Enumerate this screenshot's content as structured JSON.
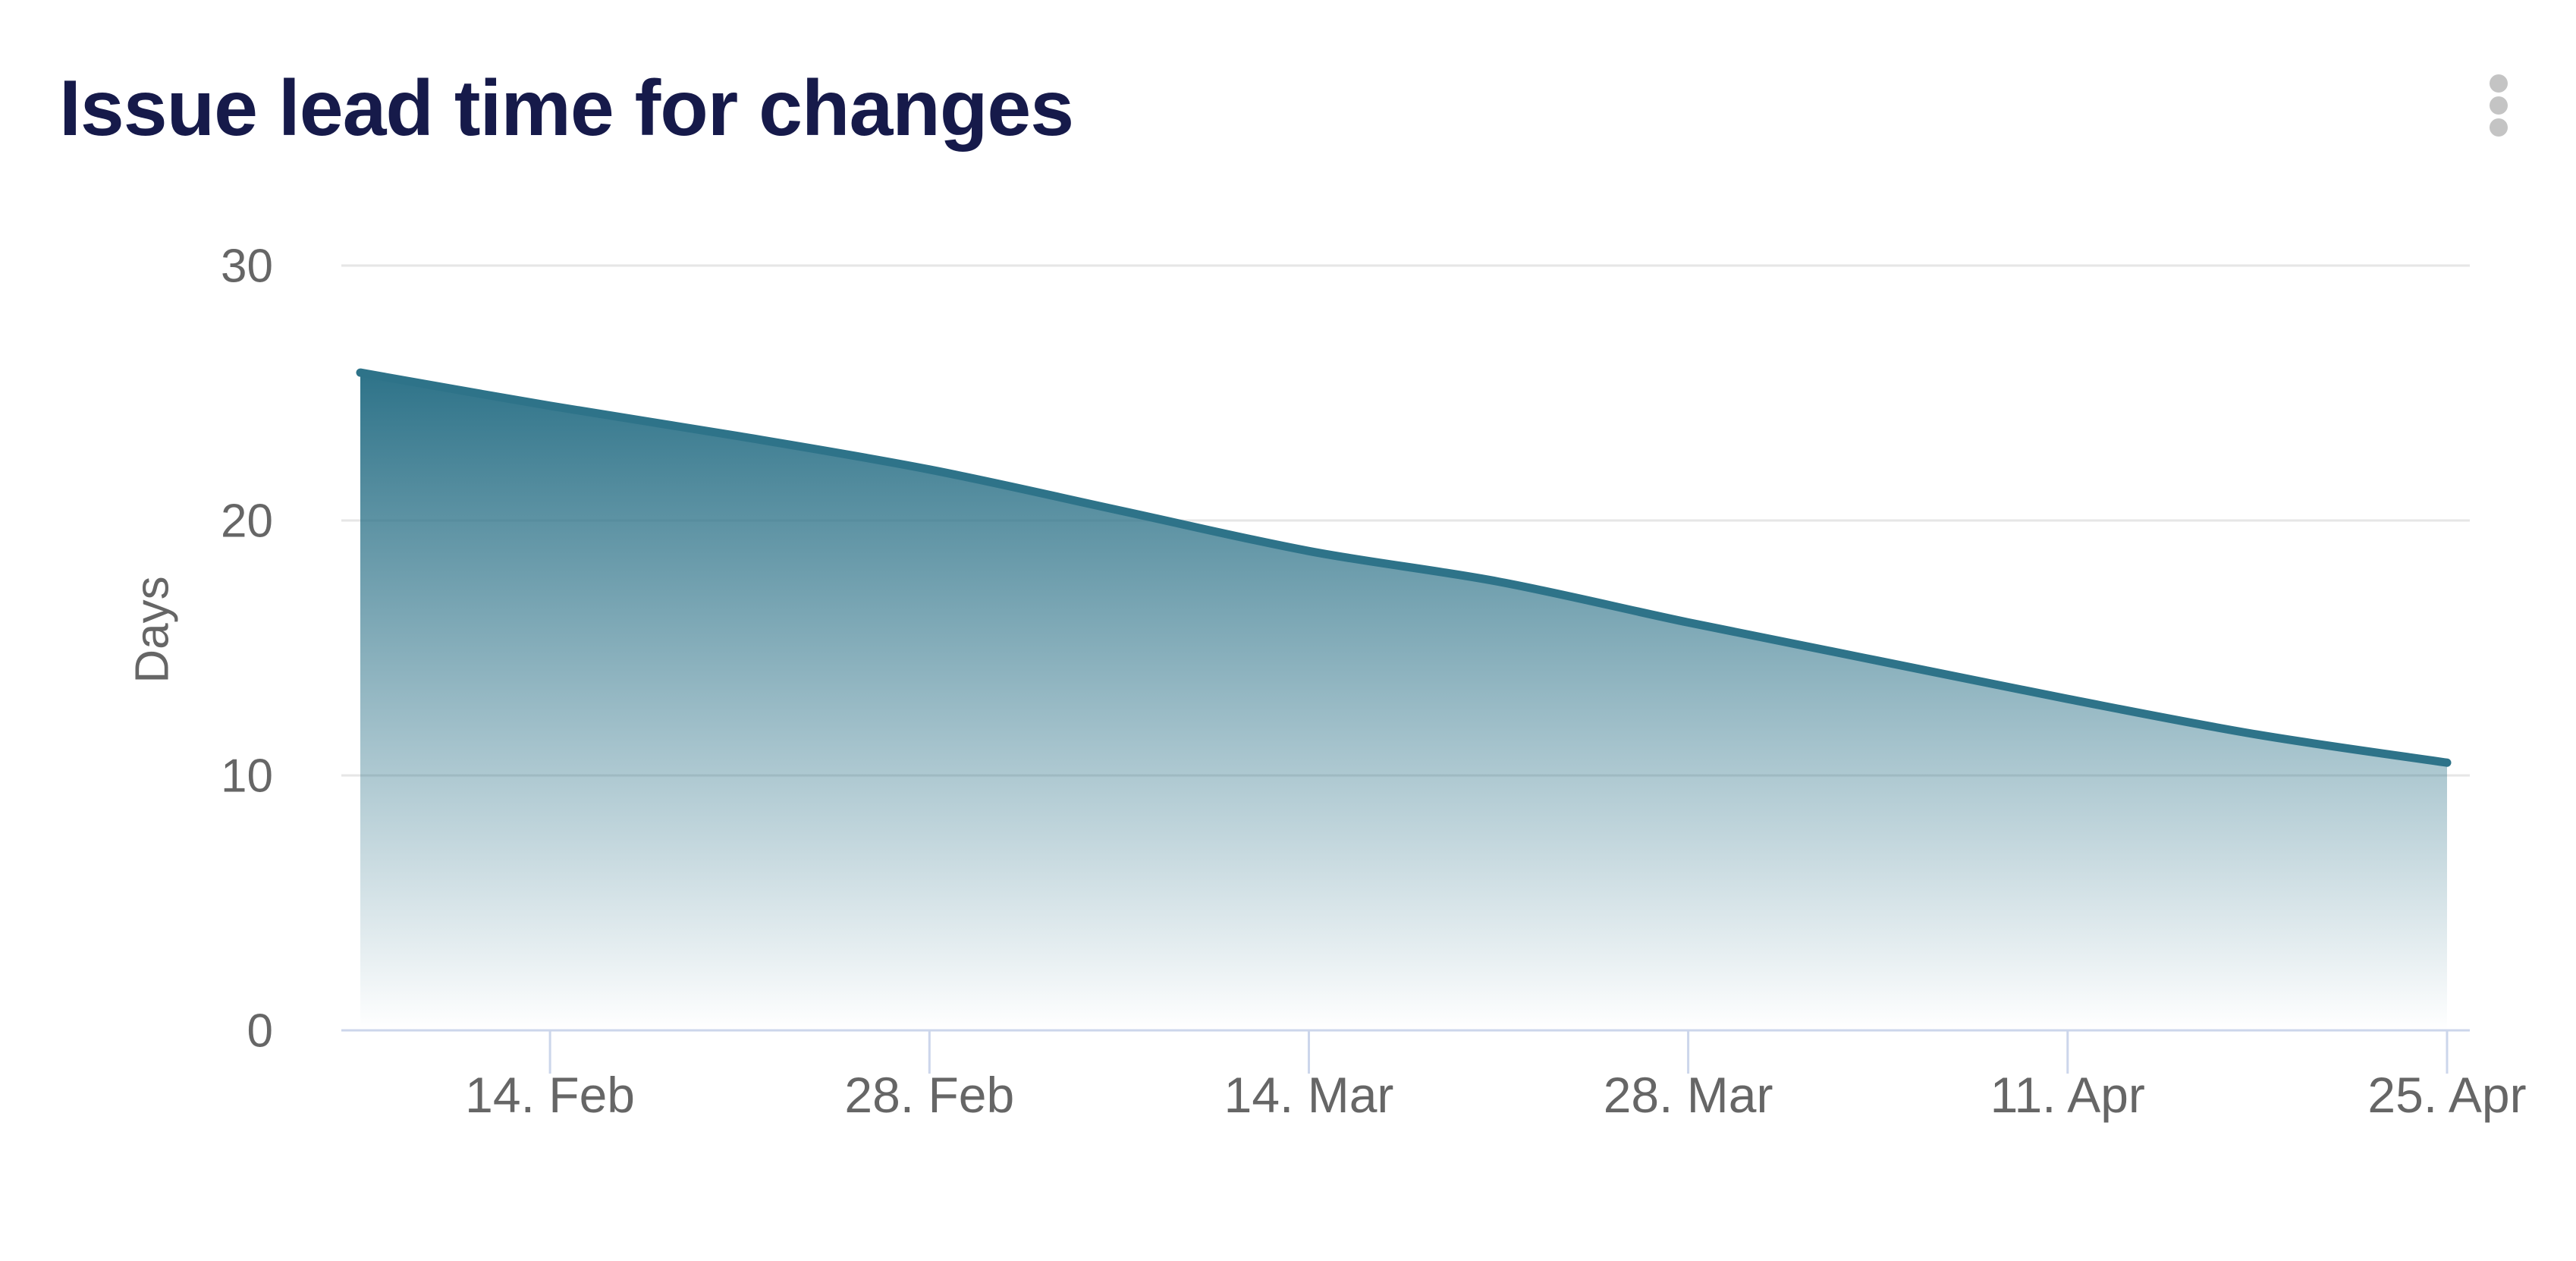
{
  "header": {
    "title": "Issue lead time for changes"
  },
  "menu": {
    "icon": "kebab-menu-icon",
    "dot_count": 3
  },
  "colors": {
    "title": "#161a4a",
    "line": "#2e7389",
    "grid": "#e6e6e6",
    "axis": "#ccd6eb",
    "labels": "#666666",
    "menu_dots": "#c4c4c4",
    "background": "#ffffff"
  },
  "chart_data": {
    "type": "area",
    "title": "Issue lead time for changes",
    "xlabel": "",
    "ylabel": "Days",
    "ylim": [
      0,
      30
    ],
    "yticks": [
      0,
      10,
      20,
      30
    ],
    "grid": "horizontal-only",
    "legend": "none",
    "xtick_labels": [
      "14. Feb",
      "28. Feb",
      "14. Mar",
      "28. Mar",
      "11. Apr",
      "25. Apr"
    ],
    "xtick_days": [
      7,
      21,
      35,
      49,
      63,
      77
    ],
    "series": [
      {
        "name": "Issue lead time for changes",
        "x_dates": [
          "7. Feb",
          "14. Feb",
          "21. Feb",
          "28. Feb",
          "7. Mar",
          "14. Mar",
          "21. Mar",
          "28. Mar",
          "4. Apr",
          "11. Apr",
          "18. Apr",
          "25. Apr"
        ],
        "x_days": [
          0,
          7,
          14,
          21,
          28,
          35,
          42,
          49,
          56,
          63,
          70,
          77
        ],
        "values": [
          25.8,
          24.5,
          23.3,
          22.0,
          20.4,
          18.8,
          17.6,
          16.0,
          14.5,
          13.0,
          11.6,
          10.5
        ],
        "line_width": 11,
        "fill": "vertical-gradient-line-color-to-transparent"
      }
    ]
  }
}
